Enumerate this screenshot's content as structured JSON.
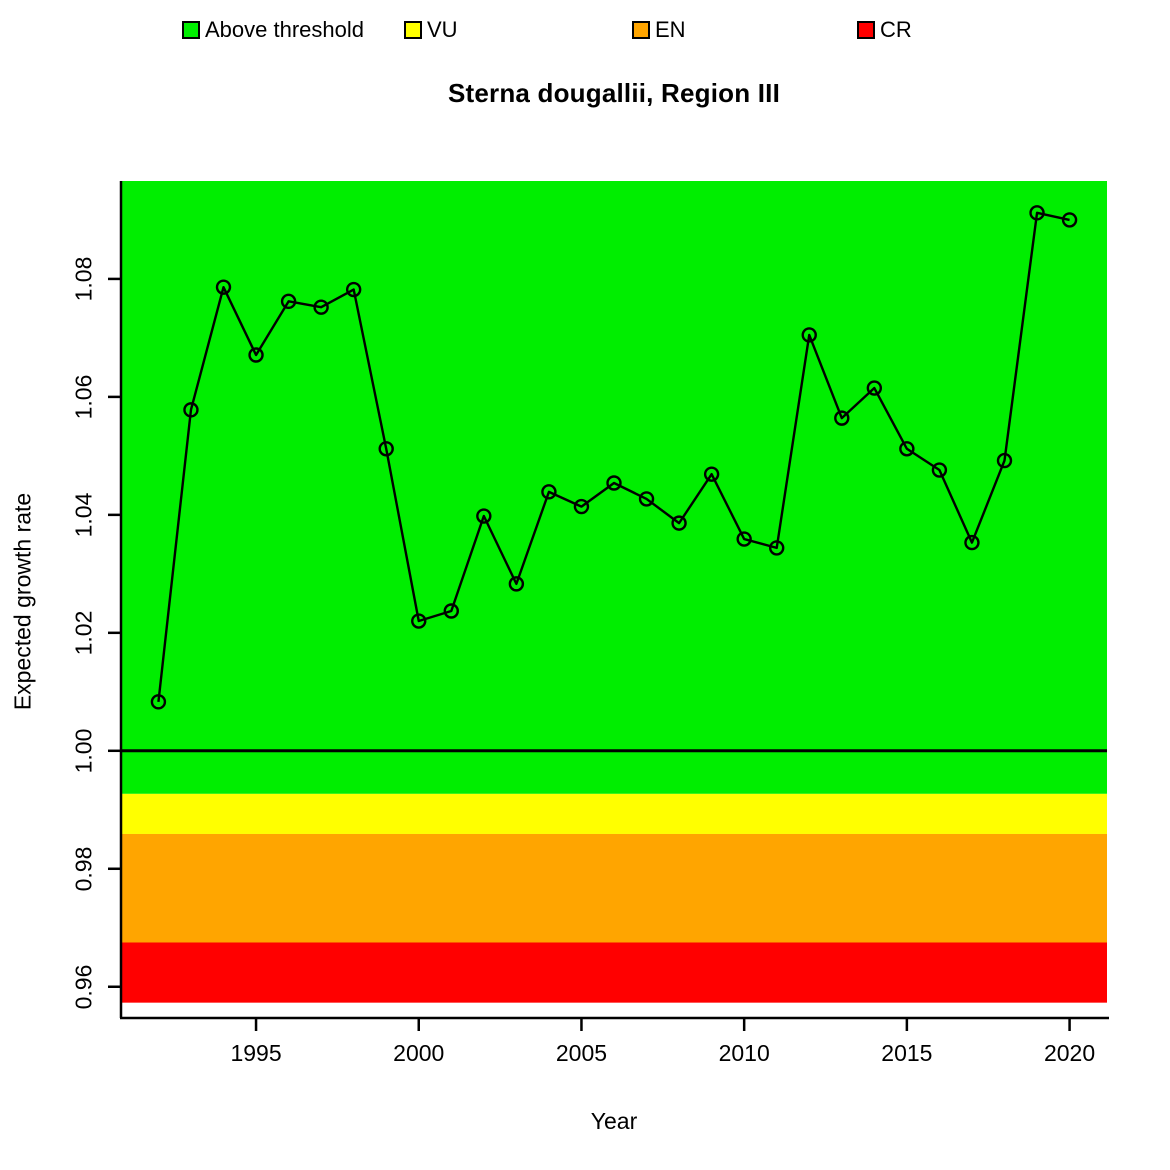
{
  "title": "Sterna dougallii, Region III",
  "legend": {
    "items": [
      {
        "label": "Above threshold",
        "color": "#00EE00",
        "x": 182
      },
      {
        "label": "VU",
        "color": "#FFFF00",
        "x": 404
      },
      {
        "label": "EN",
        "color": "#FFA500",
        "x": 632
      },
      {
        "label": "CR",
        "color": "#FF0000",
        "x": 857
      }
    ]
  },
  "chart_data": {
    "type": "line",
    "title": "Sterna dougallii, Region III",
    "xlabel": "Year",
    "ylabel": "Expected growth rate",
    "series_name": "Expected growth rate",
    "marker": "open-circle",
    "line_color": "#000000",
    "grid": false,
    "legend_position": "top",
    "x": [
      1992,
      1993,
      1994,
      1995,
      1996,
      1997,
      1998,
      1999,
      2000,
      2001,
      2002,
      2003,
      2004,
      2005,
      2006,
      2007,
      2008,
      2009,
      2010,
      2011,
      2012,
      2013,
      2014,
      2015,
      2016,
      2017,
      2018,
      2019,
      2020
    ],
    "y": [
      1.0083,
      1.0578,
      1.0786,
      1.0671,
      1.0762,
      1.0752,
      1.0782,
      1.0512,
      1.022,
      1.0237,
      1.0398,
      1.0283,
      1.0439,
      1.0414,
      1.0454,
      1.0427,
      1.0386,
      1.0469,
      1.0359,
      1.0344,
      1.0705,
      1.0564,
      1.0615,
      1.0512,
      1.0476,
      1.0353,
      1.0492,
      1.0912,
      1.09
    ],
    "x_ticks": [
      1995,
      2000,
      2005,
      2010,
      2015,
      2020
    ],
    "y_ticks": [
      0.96,
      0.98,
      1.0,
      1.02,
      1.04,
      1.06,
      1.08
    ],
    "y_tick_labels": [
      "0.96",
      "0.98",
      "1.00",
      "1.02",
      "1.04",
      "1.06",
      "1.08"
    ],
    "xlim": [
      1990.85,
      2021.15
    ],
    "ylim": [
      0.9547,
      1.0966
    ],
    "reference_line_y": 1.0,
    "bands": [
      {
        "name": "above-threshold",
        "label": "Above threshold",
        "color": "#00EE00",
        "from": 0.9927,
        "to": 1.0966
      },
      {
        "name": "vu",
        "label": "VU",
        "color": "#FFFF00",
        "from": 0.9859,
        "to": 0.9927
      },
      {
        "name": "en",
        "label": "EN",
        "color": "#FFA500",
        "from": 0.9675,
        "to": 0.9859
      },
      {
        "name": "cr",
        "label": "CR",
        "color": "#FF0000",
        "from": 0.9573,
        "to": 0.9675
      }
    ]
  }
}
